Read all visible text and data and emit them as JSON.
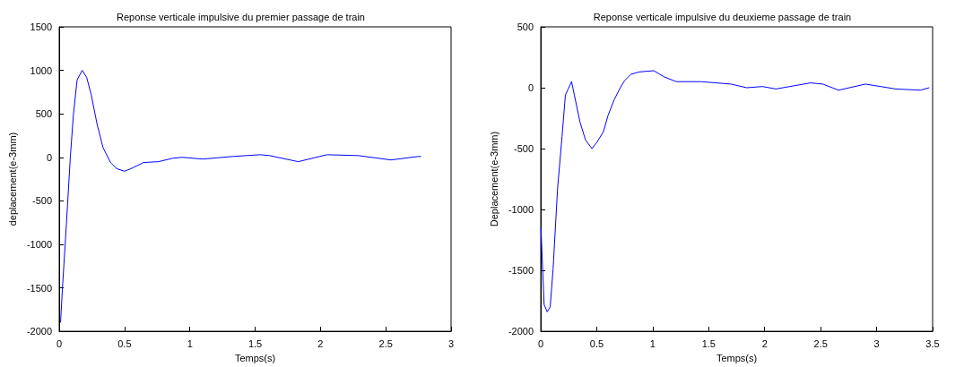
{
  "chart_data": [
    {
      "type": "line",
      "title": "Reponse verticale impulsive du premier passage de train",
      "xlabel": "Temps(s)",
      "ylabel": "deplacement(e-3mm)",
      "xlim": [
        0,
        3
      ],
      "xticks": [
        0,
        0.5,
        1,
        1.5,
        2,
        2.5,
        3
      ],
      "ylim": [
        -2000,
        1500
      ],
      "yticks": [
        -2000,
        -1500,
        -1000,
        -500,
        0,
        500,
        1000,
        1500
      ],
      "grid": false,
      "marker": "none",
      "line_style": "solid",
      "series": [
        {
          "color": "#0000ff",
          "x": [
            0.01,
            0.027,
            0.055,
            0.085,
            0.108,
            0.137,
            0.176,
            0.21,
            0.245,
            0.29,
            0.336,
            0.393,
            0.44,
            0.5,
            0.55,
            0.645,
            0.76,
            0.87,
            0.94,
            1.1,
            1.33,
            1.54,
            1.61,
            1.83,
            2.05,
            2.29,
            2.54,
            2.75,
            2.77
          ],
          "values": [
            -1900,
            -1450,
            -770,
            0,
            480,
            890,
            1000,
            920,
            720,
            380,
            110,
            -60,
            -130,
            -160,
            -130,
            -60,
            -50,
            -10,
            0,
            -20,
            10,
            30,
            20,
            -50,
            30,
            20,
            -30,
            10,
            10
          ]
        }
      ]
    },
    {
      "type": "line",
      "title": "Reponse verticale impulsive du deuxieme passage de train",
      "xlabel": "Temps(s)",
      "ylabel": "Deplacement(e-3mm)",
      "xlim": [
        0,
        3.5
      ],
      "xticks": [
        0,
        0.5,
        1,
        1.5,
        2,
        2.5,
        3,
        3.5
      ],
      "ylim": [
        -2000,
        500
      ],
      "yticks": [
        -2000,
        -1500,
        -1000,
        -500,
        0,
        500
      ],
      "grid": false,
      "marker": "none",
      "line_style": "solid",
      "series": [
        {
          "color": "#0000ff",
          "x": [
            0.002,
            0.01,
            0.03,
            0.057,
            0.084,
            0.11,
            0.15,
            0.19,
            0.22,
            0.245,
            0.275,
            0.3,
            0.35,
            0.4,
            0.457,
            0.5,
            0.56,
            0.6,
            0.655,
            0.71,
            0.75,
            0.805,
            0.88,
            1.01,
            1.1,
            1.21,
            1.43,
            1.7,
            1.84,
            1.98,
            2.1,
            2.41,
            2.52,
            2.66,
            2.9,
            3.17,
            3.39,
            3.47
          ],
          "values": [
            -1150,
            -1340,
            -1780,
            -1840,
            -1800,
            -1490,
            -830,
            -400,
            -60,
            -10,
            50,
            -60,
            -280,
            -430,
            -500,
            -450,
            -360,
            -230,
            -100,
            0,
            60,
            110,
            130,
            140,
            90,
            50,
            50,
            30,
            0,
            10,
            -10,
            40,
            30,
            -20,
            30,
            -10,
            -20,
            0
          ]
        }
      ]
    }
  ]
}
